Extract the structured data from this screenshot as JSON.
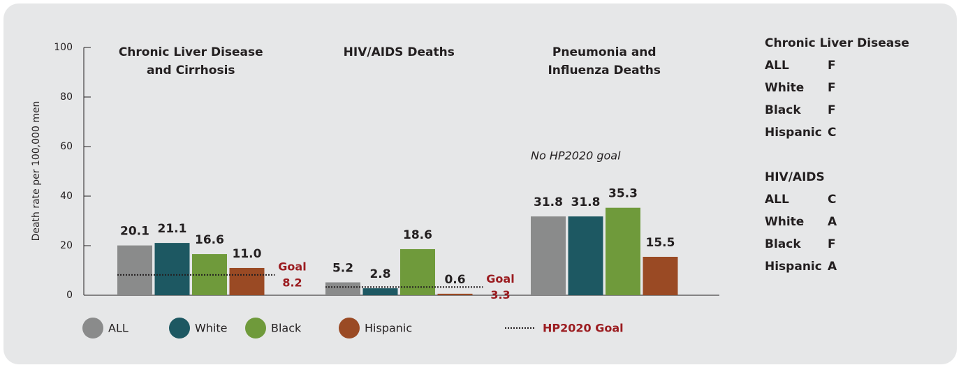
{
  "chart_data": {
    "type": "bar",
    "y_label": "Death rate per 100,000 men",
    "categories": [
      [
        "Chronic Liver Disease",
        "and Cirrhosis"
      ],
      [
        "HIV/AIDS Deaths"
      ],
      [
        "Pneumonia and",
        "Influenza Deaths"
      ]
    ],
    "series": [
      {
        "name": "ALL",
        "color": "#8a8b8b",
        "values": [
          20.1,
          5.2,
          31.8
        ],
        "value_labels": [
          "20.1",
          "5.2",
          "31.8"
        ]
      },
      {
        "name": "White",
        "color": "#1d5862",
        "values": [
          21.1,
          2.8,
          31.8
        ],
        "value_labels": [
          "21.1",
          "2.8",
          "31.8"
        ]
      },
      {
        "name": "Black",
        "color": "#6f9a3b",
        "values": [
          16.6,
          18.6,
          35.3
        ],
        "value_labels": [
          "16.6",
          "18.6",
          "35.3"
        ]
      },
      {
        "name": "Hispanic",
        "color": "#9a4a24",
        "values": [
          11.0,
          0.6,
          15.5
        ],
        "value_labels": [
          "11.0",
          "0.6",
          "15.5"
        ]
      }
    ],
    "goals": [
      8.2,
      3.3,
      null
    ],
    "goal_label": "Goal",
    "goal_legend": "HP2020 Goal",
    "no_goal_note": "No HP2020 goal",
    "goal_color": "#9b1c20",
    "ylim": [
      0,
      100
    ],
    "yticks": [
      0,
      20,
      40,
      60,
      80,
      100
    ]
  },
  "grades": [
    {
      "title": "Chronic Liver Disease",
      "rows": [
        [
          "ALL",
          "F"
        ],
        [
          "White",
          "F"
        ],
        [
          "Black",
          "F"
        ],
        [
          "Hispanic",
          "C"
        ]
      ]
    },
    {
      "title": "HIV/AIDS",
      "rows": [
        [
          "ALL",
          "C"
        ],
        [
          "White",
          "A"
        ],
        [
          "Black",
          "F"
        ],
        [
          "Hispanic",
          "A"
        ]
      ]
    }
  ]
}
